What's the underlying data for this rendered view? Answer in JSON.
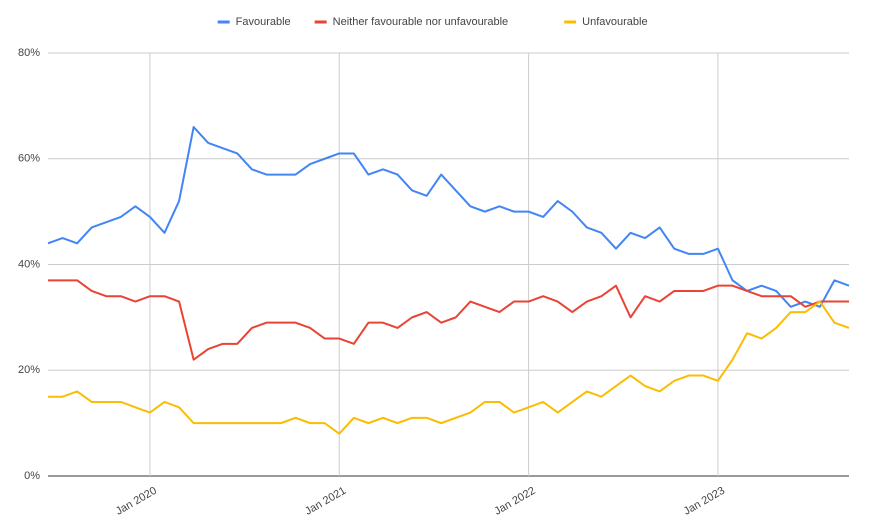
{
  "chart_data": {
    "type": "line",
    "categories": [
      null,
      null,
      null,
      null,
      null,
      null,
      null,
      "Jan 2020",
      null,
      null,
      null,
      null,
      null,
      null,
      null,
      null,
      null,
      null,
      null,
      null,
      "Jan 2021",
      null,
      null,
      null,
      null,
      null,
      null,
      null,
      null,
      null,
      null,
      null,
      null,
      "Jan 2022",
      null,
      null,
      null,
      null,
      null,
      null,
      null,
      null,
      null,
      null,
      null,
      null,
      "Jan 2023",
      null,
      null,
      null,
      null,
      null,
      null,
      null,
      null,
      null
    ],
    "series": [
      {
        "name": "Favourable",
        "color": "#4285f4",
        "values": [
          44,
          45,
          44,
          47,
          48,
          49,
          51,
          49,
          46,
          52,
          66,
          63,
          62,
          61,
          58,
          57,
          57,
          57,
          59,
          60,
          61,
          61,
          57,
          58,
          57,
          54,
          53,
          57,
          54,
          51,
          50,
          51,
          50,
          50,
          49,
          52,
          50,
          47,
          46,
          43,
          46,
          45,
          47,
          43,
          42,
          42,
          43,
          37,
          35,
          36,
          35,
          32,
          33,
          32,
          37,
          36
        ]
      },
      {
        "name": "Neither favourable nor unfavourable",
        "color": "#ea4335",
        "values": [
          37,
          37,
          37,
          35,
          34,
          34,
          33,
          34,
          34,
          33,
          22,
          24,
          25,
          25,
          28,
          29,
          29,
          29,
          28,
          26,
          26,
          25,
          29,
          29,
          28,
          30,
          31,
          29,
          30,
          33,
          32,
          31,
          33,
          33,
          34,
          33,
          31,
          33,
          34,
          36,
          30,
          34,
          33,
          35,
          35,
          35,
          36,
          36,
          35,
          34,
          34,
          34,
          32,
          33,
          33,
          33
        ]
      },
      {
        "name": "Unfavourable",
        "color": "#fbbc04",
        "values": [
          15,
          15,
          16,
          14,
          14,
          14,
          13,
          12,
          14,
          13,
          10,
          10,
          10,
          10,
          10,
          10,
          10,
          11,
          10,
          10,
          8,
          11,
          10,
          11,
          10,
          11,
          11,
          10,
          11,
          12,
          14,
          14,
          12,
          13,
          14,
          12,
          14,
          16,
          15,
          17,
          19,
          17,
          16,
          18,
          19,
          19,
          18,
          22,
          27,
          26,
          28,
          31,
          31,
          33,
          29,
          28
        ]
      }
    ],
    "ylim": [
      0,
      80
    ],
    "yticks": [
      {
        "value": 0,
        "label": "0%"
      },
      {
        "value": 20,
        "label": "20%"
      },
      {
        "value": 40,
        "label": "40%"
      },
      {
        "value": 60,
        "label": "60%"
      },
      {
        "value": 80,
        "label": "80%"
      }
    ],
    "grid": true,
    "legend": "top"
  }
}
